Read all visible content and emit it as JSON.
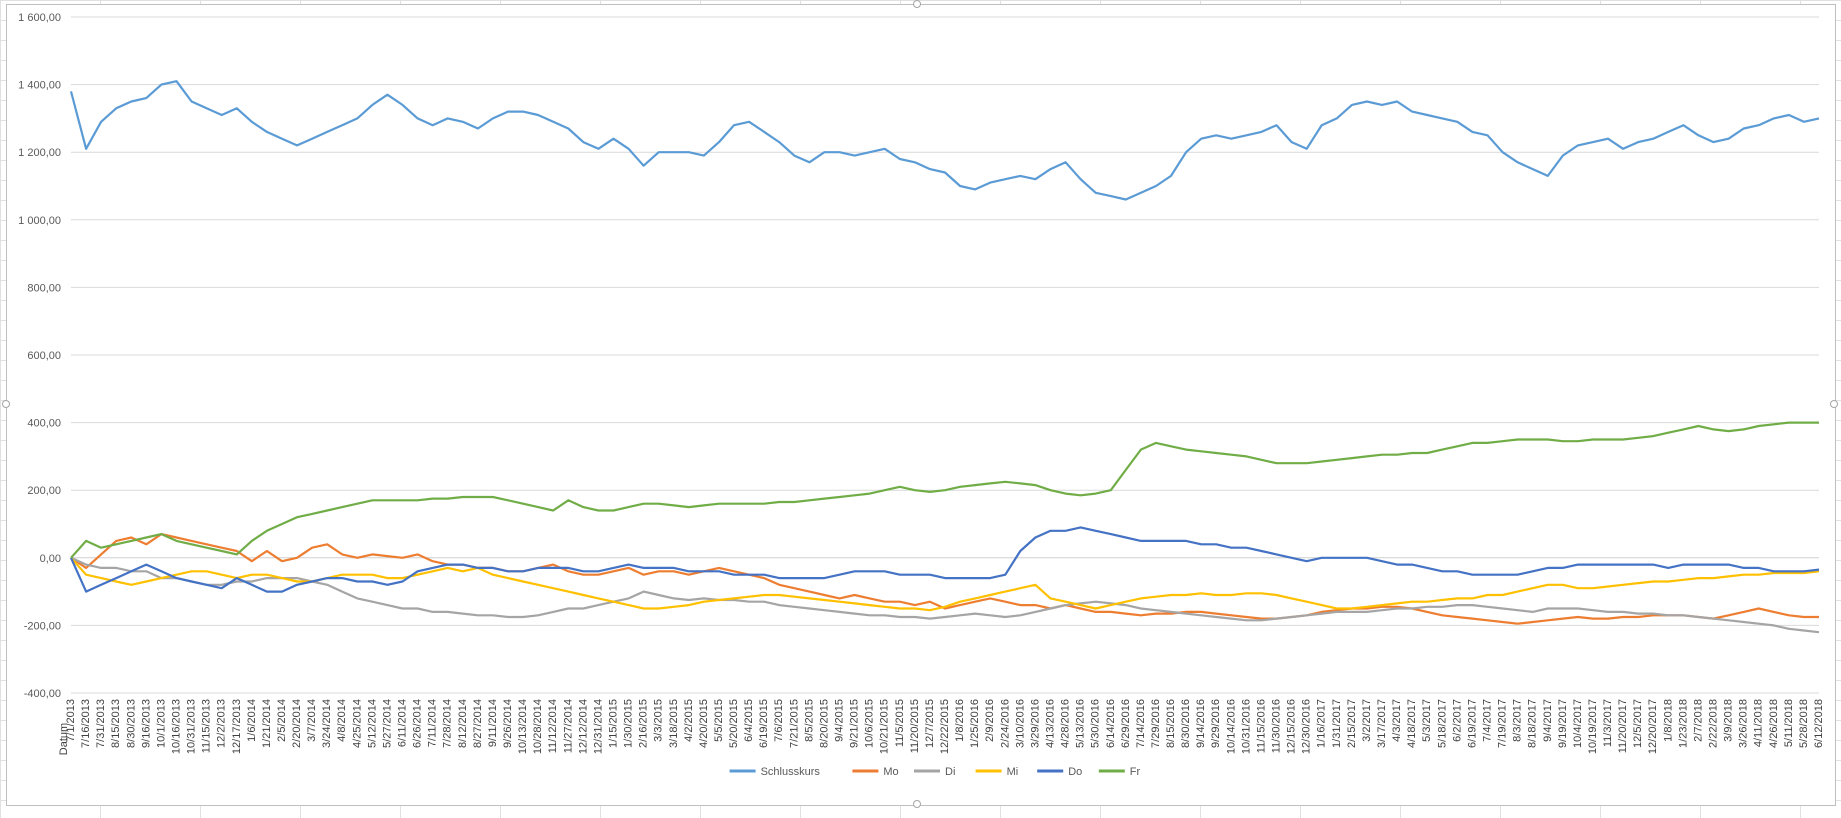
{
  "chart_data": {
    "type": "line",
    "xlabel": "Datum",
    "ylim": [
      -400,
      1600
    ],
    "y_ticks": [
      -400,
      -200,
      0,
      200,
      400,
      600,
      800,
      1000,
      1200,
      1400,
      1600
    ],
    "y_tick_labels": [
      "-400,00",
      "-200,00",
      "0,00",
      "200,00",
      "400,00",
      "600,00",
      "800,00",
      "1 000,00",
      "1 200,00",
      "1 400,00",
      "1 600,00"
    ],
    "x_tick_labels": [
      "7/1/2013",
      "7/16/2013",
      "7/31/2013",
      "8/15/2013",
      "8/30/2013",
      "9/16/2013",
      "10/1/2013",
      "10/16/2013",
      "10/31/2013",
      "11/15/2013",
      "12/2/2013",
      "12/17/2013",
      "1/6/2014",
      "1/21/2014",
      "2/5/2014",
      "2/20/2014",
      "3/7/2014",
      "3/24/2014",
      "4/8/2014",
      "4/25/2014",
      "5/12/2014",
      "5/27/2014",
      "6/11/2014",
      "6/26/2014",
      "7/11/2014",
      "7/28/2014",
      "8/12/2014",
      "8/27/2014",
      "9/11/2014",
      "9/26/2014",
      "10/13/2014",
      "10/28/2014",
      "11/12/2014",
      "11/27/2014",
      "12/12/2014",
      "12/31/2014",
      "1/15/2015",
      "1/30/2015",
      "2/16/2015",
      "3/3/2015",
      "3/18/2015",
      "4/2/2015",
      "4/20/2015",
      "5/5/2015",
      "5/20/2015",
      "6/4/2015",
      "6/19/2015",
      "7/6/2015",
      "7/21/2015",
      "8/5/2015",
      "8/20/2015",
      "9/4/2015",
      "9/21/2015",
      "10/6/2015",
      "10/21/2015",
      "11/5/2015",
      "11/20/2015",
      "12/7/2015",
      "12/22/2015",
      "1/8/2016",
      "1/25/2016",
      "2/9/2016",
      "2/24/2016",
      "3/10/2016",
      "3/29/2016",
      "4/13/2016",
      "4/28/2016",
      "5/13/2016",
      "5/30/2016",
      "6/14/2016",
      "6/29/2016",
      "7/14/2016",
      "7/29/2016",
      "8/15/2016",
      "8/30/2016",
      "9/14/2016",
      "9/29/2016",
      "10/14/2016",
      "10/31/2016",
      "11/15/2016",
      "11/30/2016",
      "12/15/2016",
      "12/30/2016",
      "1/16/2017",
      "1/31/2017",
      "2/15/2017",
      "3/2/2017",
      "3/17/2017",
      "4/3/2017",
      "4/18/2017",
      "5/3/2017",
      "5/18/2017",
      "6/2/2017",
      "6/19/2017",
      "7/4/2017",
      "7/19/2017",
      "8/3/2017",
      "8/18/2017",
      "9/4/2017",
      "9/19/2017",
      "10/4/2017",
      "10/19/2017",
      "11/3/2017",
      "11/20/2017",
      "12/5/2017",
      "12/20/2017",
      "1/8/2018",
      "1/23/2018",
      "2/7/2018",
      "2/22/2018",
      "3/9/2018",
      "3/26/2018",
      "4/11/2018",
      "4/26/2018",
      "5/11/2018",
      "5/28/2018",
      "6/12/2018"
    ],
    "legend_position": "bottom",
    "grid": "horizontal",
    "series": [
      {
        "name": "Schlusskurs",
        "color": "#5b9bd5",
        "values": [
          1380,
          1210,
          1290,
          1330,
          1350,
          1360,
          1400,
          1410,
          1350,
          1330,
          1310,
          1330,
          1290,
          1260,
          1240,
          1220,
          1240,
          1260,
          1280,
          1300,
          1340,
          1370,
          1340,
          1300,
          1280,
          1300,
          1290,
          1270,
          1300,
          1320,
          1320,
          1310,
          1290,
          1270,
          1230,
          1210,
          1240,
          1210,
          1160,
          1200,
          1200,
          1200,
          1190,
          1230,
          1280,
          1290,
          1260,
          1230,
          1190,
          1170,
          1200,
          1200,
          1190,
          1200,
          1210,
          1180,
          1170,
          1150,
          1140,
          1100,
          1090,
          1110,
          1120,
          1130,
          1120,
          1150,
          1170,
          1120,
          1080,
          1070,
          1060,
          1080,
          1100,
          1130,
          1200,
          1240,
          1250,
          1240,
          1250,
          1260,
          1280,
          1230,
          1210,
          1280,
          1300,
          1340,
          1350,
          1340,
          1350,
          1320,
          1310,
          1300,
          1290,
          1260,
          1250,
          1200,
          1170,
          1150,
          1130,
          1190,
          1220,
          1230,
          1240,
          1210,
          1230,
          1240,
          1260,
          1280,
          1250,
          1230,
          1240,
          1270,
          1280,
          1300,
          1310,
          1290,
          1300
        ]
      },
      {
        "name": "Mo",
        "color": "#ed7d31",
        "values": [
          0,
          -30,
          10,
          50,
          60,
          40,
          70,
          60,
          50,
          40,
          30,
          20,
          -10,
          20,
          -10,
          0,
          30,
          40,
          10,
          0,
          10,
          5,
          0,
          10,
          -10,
          -20,
          -20,
          -30,
          -30,
          -40,
          -40,
          -30,
          -20,
          -40,
          -50,
          -50,
          -40,
          -30,
          -50,
          -40,
          -40,
          -50,
          -40,
          -30,
          -40,
          -50,
          -60,
          -80,
          -90,
          -100,
          -110,
          -120,
          -110,
          -120,
          -130,
          -130,
          -140,
          -130,
          -150,
          -140,
          -130,
          -120,
          -130,
          -140,
          -140,
          -150,
          -140,
          -150,
          -160,
          -160,
          -165,
          -170,
          -165,
          -165,
          -160,
          -160,
          -165,
          -170,
          -175,
          -180,
          -180,
          -175,
          -170,
          -160,
          -155,
          -150,
          -150,
          -145,
          -145,
          -150,
          -160,
          -170,
          -175,
          -180,
          -185,
          -190,
          -195,
          -190,
          -185,
          -180,
          -175,
          -180,
          -180,
          -175,
          -175,
          -170,
          -170,
          -170,
          -175,
          -180,
          -170,
          -160,
          -150,
          -160,
          -170,
          -175,
          -175
        ]
      },
      {
        "name": "Di",
        "color": "#a5a5a5",
        "values": [
          0,
          -20,
          -30,
          -30,
          -40,
          -40,
          -60,
          -60,
          -70,
          -80,
          -80,
          -70,
          -70,
          -60,
          -60,
          -60,
          -70,
          -80,
          -100,
          -120,
          -130,
          -140,
          -150,
          -150,
          -160,
          -160,
          -165,
          -170,
          -170,
          -175,
          -175,
          -170,
          -160,
          -150,
          -150,
          -140,
          -130,
          -120,
          -100,
          -110,
          -120,
          -125,
          -120,
          -125,
          -125,
          -130,
          -130,
          -140,
          -145,
          -150,
          -155,
          -160,
          -165,
          -170,
          -170,
          -175,
          -175,
          -180,
          -175,
          -170,
          -165,
          -170,
          -175,
          -170,
          -160,
          -150,
          -140,
          -135,
          -130,
          -135,
          -140,
          -150,
          -155,
          -160,
          -165,
          -170,
          -175,
          -180,
          -185,
          -185,
          -180,
          -175,
          -170,
          -165,
          -160,
          -160,
          -160,
          -155,
          -150,
          -150,
          -145,
          -145,
          -140,
          -140,
          -145,
          -150,
          -155,
          -160,
          -150,
          -150,
          -150,
          -155,
          -160,
          -160,
          -165,
          -165,
          -170,
          -170,
          -175,
          -180,
          -185,
          -190,
          -195,
          -200,
          -210,
          -215,
          -220
        ]
      },
      {
        "name": "Mi",
        "color": "#ffc000",
        "values": [
          0,
          -50,
          -60,
          -70,
          -80,
          -70,
          -60,
          -50,
          -40,
          -40,
          -50,
          -60,
          -50,
          -50,
          -60,
          -70,
          -70,
          -60,
          -50,
          -50,
          -50,
          -60,
          -60,
          -50,
          -40,
          -30,
          -40,
          -30,
          -50,
          -60,
          -70,
          -80,
          -90,
          -100,
          -110,
          -120,
          -130,
          -140,
          -150,
          -150,
          -145,
          -140,
          -130,
          -125,
          -120,
          -115,
          -110,
          -110,
          -115,
          -120,
          -125,
          -130,
          -135,
          -140,
          -145,
          -150,
          -150,
          -155,
          -145,
          -130,
          -120,
          -110,
          -100,
          -90,
          -80,
          -120,
          -130,
          -140,
          -150,
          -140,
          -130,
          -120,
          -115,
          -110,
          -110,
          -105,
          -110,
          -110,
          -105,
          -105,
          -110,
          -120,
          -130,
          -140,
          -150,
          -150,
          -145,
          -140,
          -135,
          -130,
          -130,
          -125,
          -120,
          -120,
          -110,
          -110,
          -100,
          -90,
          -80,
          -80,
          -90,
          -90,
          -85,
          -80,
          -75,
          -70,
          -70,
          -65,
          -60,
          -60,
          -55,
          -50,
          -50,
          -45,
          -45,
          -45,
          -40
        ]
      },
      {
        "name": "Do",
        "color": "#4472c4",
        "values": [
          0,
          -100,
          -80,
          -60,
          -40,
          -20,
          -40,
          -60,
          -70,
          -80,
          -90,
          -60,
          -80,
          -100,
          -100,
          -80,
          -70,
          -60,
          -60,
          -70,
          -70,
          -80,
          -70,
          -40,
          -30,
          -20,
          -20,
          -30,
          -30,
          -40,
          -40,
          -30,
          -30,
          -30,
          -40,
          -40,
          -30,
          -20,
          -30,
          -30,
          -30,
          -40,
          -40,
          -40,
          -50,
          -50,
          -50,
          -60,
          -60,
          -60,
          -60,
          -50,
          -40,
          -40,
          -40,
          -50,
          -50,
          -50,
          -60,
          -60,
          -60,
          -60,
          -50,
          20,
          60,
          80,
          80,
          90,
          80,
          70,
          60,
          50,
          50,
          50,
          50,
          40,
          40,
          30,
          30,
          20,
          10,
          0,
          -10,
          0,
          0,
          0,
          0,
          -10,
          -20,
          -20,
          -30,
          -40,
          -40,
          -50,
          -50,
          -50,
          -50,
          -40,
          -30,
          -30,
          -20,
          -20,
          -20,
          -20,
          -20,
          -20,
          -30,
          -20,
          -20,
          -20,
          -20,
          -30,
          -30,
          -40,
          -40,
          -40,
          -35
        ]
      },
      {
        "name": "Fr",
        "color": "#70ad47",
        "values": [
          0,
          50,
          30,
          40,
          50,
          60,
          70,
          50,
          40,
          30,
          20,
          10,
          50,
          80,
          100,
          120,
          130,
          140,
          150,
          160,
          170,
          170,
          170,
          170,
          175,
          175,
          180,
          180,
          180,
          170,
          160,
          150,
          140,
          170,
          150,
          140,
          140,
          150,
          160,
          160,
          155,
          150,
          155,
          160,
          160,
          160,
          160,
          165,
          165,
          170,
          175,
          180,
          185,
          190,
          200,
          210,
          200,
          195,
          200,
          210,
          215,
          220,
          225,
          220,
          215,
          200,
          190,
          185,
          190,
          200,
          260,
          320,
          340,
          330,
          320,
          315,
          310,
          305,
          300,
          290,
          280,
          280,
          280,
          285,
          290,
          295,
          300,
          305,
          305,
          310,
          310,
          320,
          330,
          340,
          340,
          345,
          350,
          350,
          350,
          345,
          345,
          350,
          350,
          350,
          355,
          360,
          370,
          380,
          390,
          380,
          375,
          380,
          390,
          395,
          400,
          400,
          400
        ]
      }
    ]
  }
}
